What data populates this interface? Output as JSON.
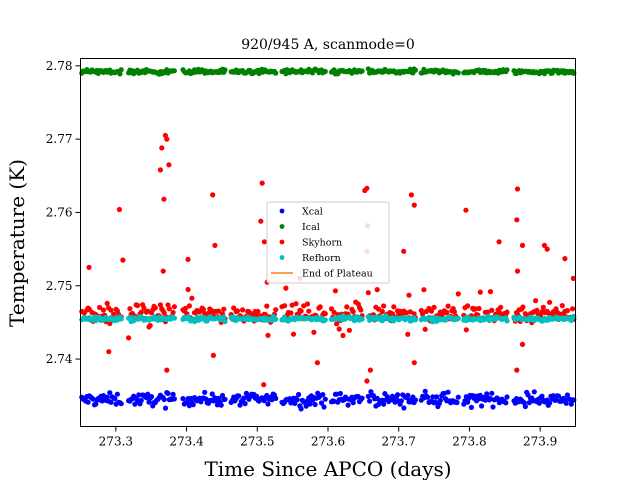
{
  "chart_data": {
    "type": "scatter",
    "title": "920/945 A, scanmode=0",
    "xlabel": "Time Since APCO (days)",
    "ylabel": "Temperature (K)",
    "xlim": [
      273.25,
      273.95
    ],
    "ylim": [
      2.7308,
      2.781
    ],
    "x_ticks": [
      273.3,
      273.4,
      273.5,
      273.6,
      273.7,
      273.8,
      273.9
    ],
    "x_tick_labels": [
      "273.3",
      "273.4",
      "273.5",
      "273.6",
      "273.7",
      "273.8",
      "273.9"
    ],
    "y_ticks": [
      2.74,
      2.75,
      2.76,
      2.77,
      2.78
    ],
    "y_tick_labels": [
      "2.74",
      "2.75",
      "2.76",
      "2.77",
      "2.78"
    ],
    "grid": false,
    "legend_position": "center",
    "segments": [
      [
        273.25,
        273.309
      ],
      [
        273.318,
        273.384
      ],
      [
        273.395,
        273.455
      ],
      [
        273.463,
        273.527
      ],
      [
        273.535,
        273.598
      ],
      [
        273.605,
        273.65
      ],
      [
        273.657,
        273.724
      ],
      [
        273.732,
        273.786
      ],
      [
        273.792,
        273.855
      ],
      [
        273.863,
        273.95
      ]
    ],
    "series": [
      {
        "name": "Xcal",
        "color": "#0000ff",
        "marker": "dot",
        "level": 2.7345,
        "spread": 0.0004
      },
      {
        "name": "Ical",
        "color": "#008000",
        "marker": "dot",
        "level": 2.7792,
        "spread": 0.00015
      },
      {
        "name": "Skyhorn",
        "color": "#ff0000",
        "marker": "dot",
        "level": 2.7462,
        "spread": 0.0006,
        "outliers": [
          [
            273.305,
            2.7604
          ],
          [
            273.31,
            2.7535
          ],
          [
            273.262,
            2.7525
          ],
          [
            273.363,
            2.7658
          ],
          [
            273.365,
            2.7688
          ],
          [
            273.37,
            2.7705
          ],
          [
            273.372,
            2.77
          ],
          [
            273.375,
            2.7665
          ],
          [
            273.368,
            2.7618
          ],
          [
            273.367,
            2.752
          ],
          [
            273.402,
            2.7536
          ],
          [
            273.437,
            2.7624
          ],
          [
            273.44,
            2.7555
          ],
          [
            273.507,
            2.764
          ],
          [
            273.505,
            2.7588
          ],
          [
            273.51,
            2.756
          ],
          [
            273.514,
            2.7505
          ],
          [
            273.56,
            2.751
          ],
          [
            273.655,
            2.7633
          ],
          [
            273.652,
            2.763
          ],
          [
            273.656,
            2.7582
          ],
          [
            273.655,
            2.7547
          ],
          [
            273.655,
            2.737
          ],
          [
            273.718,
            2.7624
          ],
          [
            273.722,
            2.761
          ],
          [
            273.707,
            2.7547
          ],
          [
            273.795,
            2.7603
          ],
          [
            273.842,
            2.756
          ],
          [
            273.868,
            2.7632
          ],
          [
            273.867,
            2.759
          ],
          [
            273.875,
            2.7555
          ],
          [
            273.868,
            2.752
          ],
          [
            273.906,
            2.7555
          ],
          [
            273.91,
            2.755
          ],
          [
            273.935,
            2.7537
          ],
          [
            273.947,
            2.751
          ],
          [
            273.29,
            2.741
          ],
          [
            273.372,
            2.7385
          ],
          [
            273.438,
            2.7405
          ],
          [
            273.509,
            2.7365
          ],
          [
            273.585,
            2.7395
          ],
          [
            273.66,
            2.7385
          ],
          [
            273.722,
            2.7395
          ],
          [
            273.867,
            2.7385
          ],
          [
            273.875,
            2.742
          ]
        ]
      },
      {
        "name": "Refhorn",
        "color": "#00bfbf",
        "marker": "dot",
        "level": 2.7455,
        "spread": 0.00015
      },
      {
        "name": "End of Plateau",
        "color": "#ff7f0e",
        "marker": "line"
      }
    ]
  }
}
